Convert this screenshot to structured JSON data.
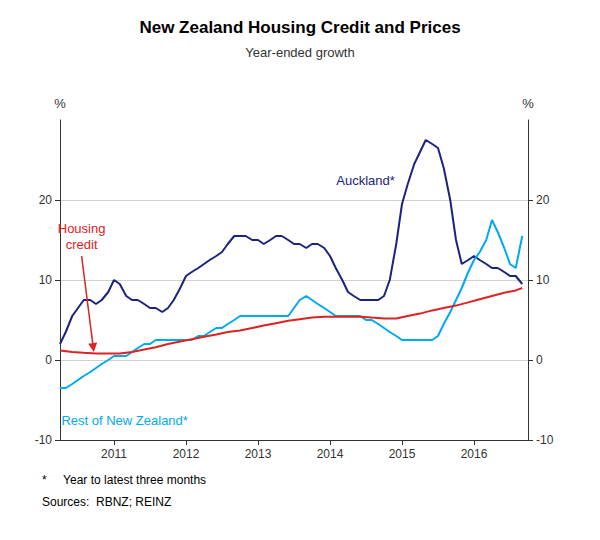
{
  "chart_data": {
    "type": "line",
    "title": "New Zealand Housing Credit and Prices",
    "subtitle": "Year-ended growth",
    "ylabel": "%",
    "y2label": "%",
    "xlim": [
      2010.25,
      2016.75
    ],
    "xticks": [
      2011,
      2012,
      2013,
      2014,
      2015,
      2016
    ],
    "ylim": [
      -10,
      30
    ],
    "yticks": [
      -10,
      0,
      10,
      20
    ],
    "y2lim": [
      -10,
      30
    ],
    "y2ticks": [
      -10,
      0,
      10,
      20
    ],
    "grid": true,
    "footnotes": [
      "*     Year to latest three months",
      "Sources:  RBNZ; REINZ"
    ],
    "series": [
      {
        "name": "Auckland*",
        "color": "#1a237e",
        "x": [
          2010.25,
          2010.33,
          2010.42,
          2010.5,
          2010.58,
          2010.67,
          2010.75,
          2010.83,
          2010.92,
          2011.0,
          2011.08,
          2011.17,
          2011.25,
          2011.33,
          2011.42,
          2011.5,
          2011.58,
          2011.67,
          2011.75,
          2011.83,
          2011.92,
          2012.0,
          2012.08,
          2012.17,
          2012.25,
          2012.33,
          2012.42,
          2012.5,
          2012.58,
          2012.67,
          2012.75,
          2012.83,
          2012.92,
          2013.0,
          2013.08,
          2013.17,
          2013.25,
          2013.33,
          2013.42,
          2013.5,
          2013.58,
          2013.67,
          2013.75,
          2013.83,
          2013.92,
          2014.0,
          2014.08,
          2014.17,
          2014.25,
          2014.33,
          2014.42,
          2014.5,
          2014.58,
          2014.67,
          2014.75,
          2014.83,
          2014.92,
          2015.0,
          2015.08,
          2015.17,
          2015.25,
          2015.33,
          2015.42,
          2015.5,
          2015.58,
          2015.67,
          2015.75,
          2015.83,
          2015.92,
          2016.0,
          2016.08,
          2016.17,
          2016.25,
          2016.33,
          2016.42,
          2016.5,
          2016.58,
          2016.67
        ],
        "values": [
          2.0,
          3.5,
          5.5,
          6.5,
          7.5,
          7.5,
          7.0,
          7.5,
          8.5,
          10.0,
          9.5,
          8.0,
          7.5,
          7.5,
          7.0,
          6.5,
          6.5,
          6.0,
          6.5,
          7.5,
          9.0,
          10.5,
          11.0,
          11.5,
          12.0,
          12.5,
          13.0,
          13.5,
          14.5,
          15.5,
          15.5,
          15.5,
          15.0,
          15.0,
          14.5,
          15.0,
          15.5,
          15.5,
          15.0,
          14.5,
          14.5,
          14.0,
          14.5,
          14.5,
          14.0,
          13.0,
          11.5,
          10.0,
          8.5,
          8.0,
          7.5,
          7.5,
          7.5,
          7.5,
          8.0,
          10.0,
          14.5,
          19.5,
          22.0,
          24.5,
          26.0,
          27.5,
          27.0,
          26.5,
          24.0,
          20.0,
          15.0,
          12.0,
          12.5,
          13.0,
          12.5,
          12.0,
          11.5,
          11.5,
          11.0,
          10.5,
          10.5,
          9.5
        ]
      },
      {
        "name": "Rest of New Zealand*",
        "color": "#00aaee",
        "x": [
          2010.25,
          2010.33,
          2010.42,
          2010.5,
          2010.58,
          2010.67,
          2010.75,
          2010.83,
          2010.92,
          2011.0,
          2011.08,
          2011.17,
          2011.25,
          2011.33,
          2011.42,
          2011.5,
          2011.58,
          2011.67,
          2011.75,
          2011.83,
          2011.92,
          2012.0,
          2012.08,
          2012.17,
          2012.25,
          2012.33,
          2012.42,
          2012.5,
          2012.58,
          2012.67,
          2012.75,
          2012.83,
          2012.92,
          2013.0,
          2013.08,
          2013.17,
          2013.25,
          2013.33,
          2013.42,
          2013.5,
          2013.58,
          2013.67,
          2013.75,
          2013.83,
          2013.92,
          2014.0,
          2014.08,
          2014.17,
          2014.25,
          2014.33,
          2014.42,
          2014.5,
          2014.58,
          2014.67,
          2014.75,
          2014.83,
          2014.92,
          2015.0,
          2015.08,
          2015.17,
          2015.25,
          2015.33,
          2015.42,
          2015.5,
          2015.58,
          2015.67,
          2015.75,
          2015.83,
          2015.92,
          2016.0,
          2016.08,
          2016.17,
          2016.25,
          2016.33,
          2016.42,
          2016.5,
          2016.58,
          2016.67
        ],
        "values": [
          -3.5,
          -3.5,
          -3.0,
          -2.5,
          -2.0,
          -1.5,
          -1.0,
          -0.5,
          0.0,
          0.5,
          0.5,
          0.5,
          1.0,
          1.5,
          2.0,
          2.0,
          2.5,
          2.5,
          2.5,
          2.5,
          2.5,
          2.5,
          2.5,
          3.0,
          3.0,
          3.5,
          4.0,
          4.0,
          4.5,
          5.0,
          5.5,
          5.5,
          5.5,
          5.5,
          5.5,
          5.5,
          5.5,
          5.5,
          5.5,
          6.5,
          7.5,
          8.0,
          7.5,
          7.0,
          6.5,
          6.0,
          5.5,
          5.5,
          5.5,
          5.5,
          5.5,
          5.0,
          5.0,
          4.5,
          4.0,
          3.5,
          3.0,
          2.5,
          2.5,
          2.5,
          2.5,
          2.5,
          2.5,
          3.0,
          4.5,
          6.0,
          7.5,
          9.0,
          11.0,
          12.5,
          13.5,
          15.0,
          17.5,
          16.0,
          14.0,
          12.0,
          11.5,
          15.5
        ]
      },
      {
        "name": "Housing\ncredit",
        "color": "#dd2222",
        "x": [
          2010.25,
          2010.42,
          2010.58,
          2010.75,
          2010.92,
          2011.08,
          2011.25,
          2011.42,
          2011.58,
          2011.75,
          2011.92,
          2012.08,
          2012.25,
          2012.42,
          2012.58,
          2012.75,
          2012.92,
          2013.08,
          2013.25,
          2013.42,
          2013.58,
          2013.75,
          2013.92,
          2014.08,
          2014.25,
          2014.42,
          2014.58,
          2014.75,
          2014.92,
          2015.08,
          2015.25,
          2015.42,
          2015.58,
          2015.75,
          2015.92,
          2016.08,
          2016.25,
          2016.42,
          2016.58,
          2016.67
        ],
        "values": [
          1.2,
          1.0,
          0.9,
          0.8,
          0.8,
          0.8,
          1.0,
          1.3,
          1.6,
          2.0,
          2.3,
          2.6,
          2.9,
          3.2,
          3.5,
          3.7,
          4.0,
          4.3,
          4.6,
          4.9,
          5.1,
          5.3,
          5.4,
          5.4,
          5.4,
          5.4,
          5.3,
          5.2,
          5.2,
          5.5,
          5.8,
          6.2,
          6.5,
          6.8,
          7.2,
          7.6,
          8.0,
          8.4,
          8.7,
          9.0
        ]
      }
    ]
  }
}
